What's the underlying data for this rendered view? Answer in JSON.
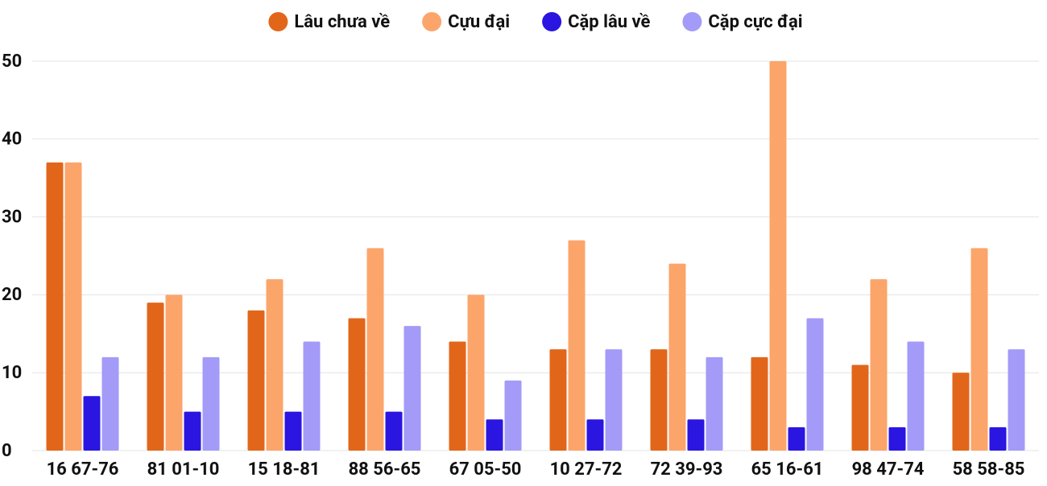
{
  "chart_data": {
    "type": "bar",
    "categories": [
      "16 67-76",
      "81 01-10",
      "15 18-81",
      "88 56-65",
      "67 05-50",
      "10 27-72",
      "72 39-93",
      "65 16-61",
      "98 47-74",
      "58 58-85"
    ],
    "series": [
      {
        "name": "Lâu chưa về",
        "color": "#e2661a",
        "values": [
          37,
          19,
          18,
          17,
          14,
          13,
          13,
          12,
          11,
          10
        ]
      },
      {
        "name": "Cựu đại",
        "color": "#fca56b",
        "values": [
          37,
          20,
          22,
          26,
          20,
          27,
          24,
          50,
          22,
          26
        ]
      },
      {
        "name": "Cặp lâu về",
        "color": "#2a16e0",
        "values": [
          7,
          5,
          5,
          5,
          4,
          4,
          4,
          3,
          3,
          3
        ]
      },
      {
        "name": "Cặp cực đại",
        "color": "#a39bf7",
        "values": [
          12,
          12,
          14,
          16,
          9,
          13,
          12,
          17,
          14,
          13
        ]
      }
    ],
    "ylim": [
      0,
      50
    ],
    "yticks": [
      0,
      10,
      20,
      30,
      40,
      50
    ],
    "grid": true,
    "legend": "top"
  }
}
